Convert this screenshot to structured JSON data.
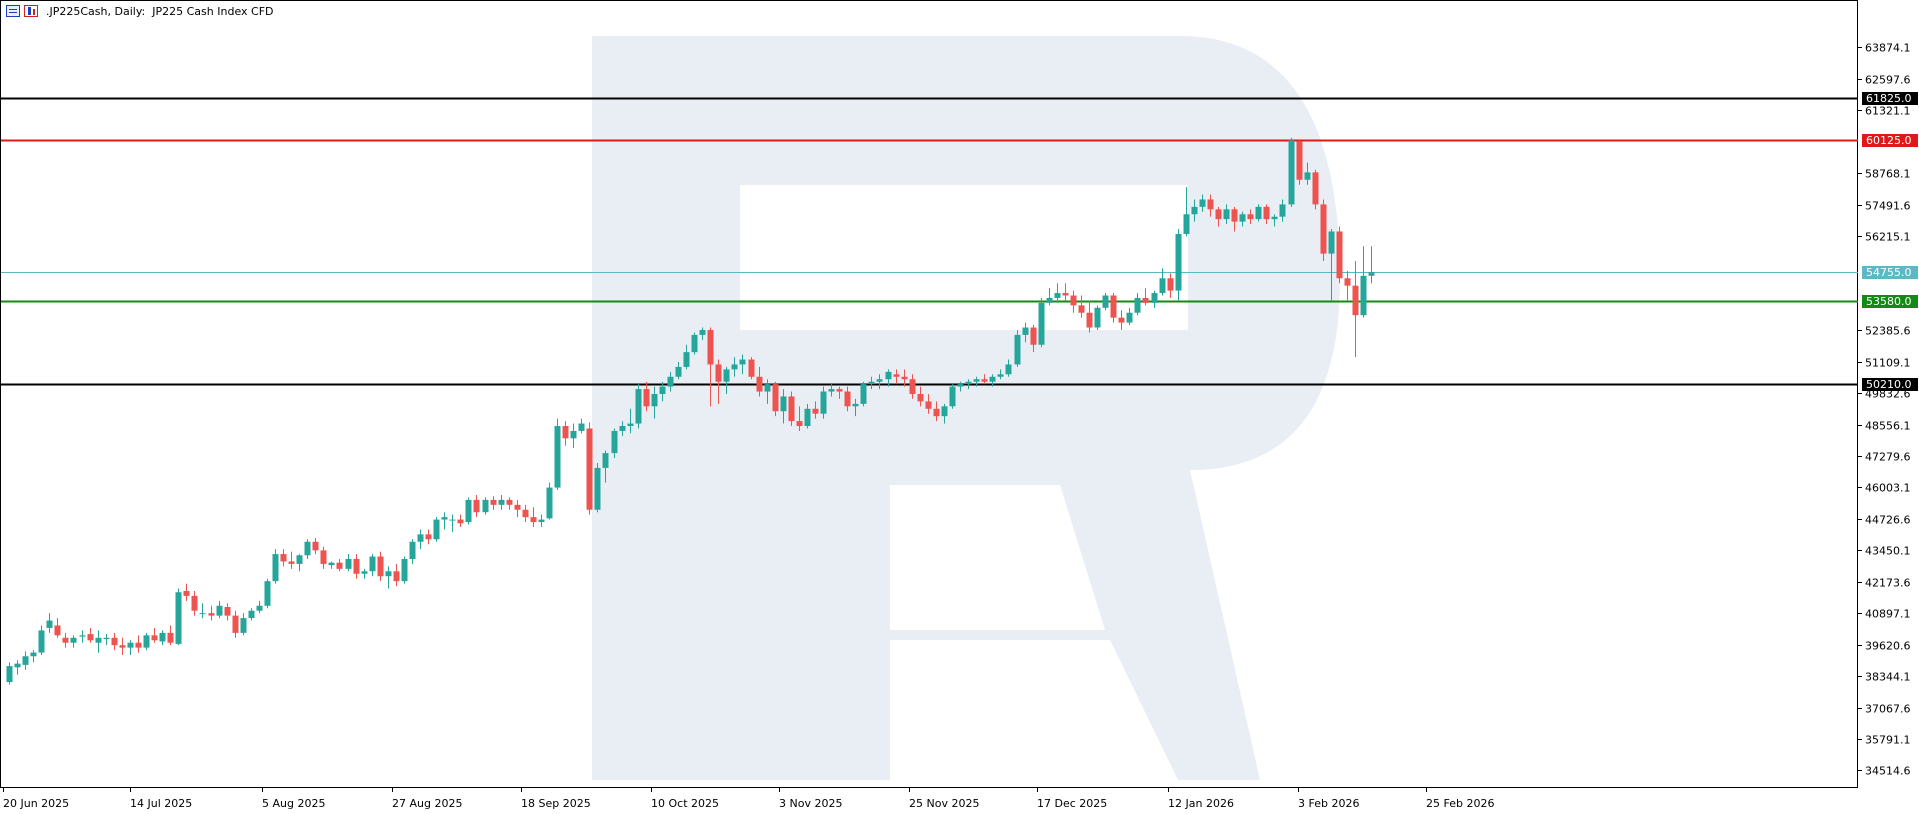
{
  "header": {
    "symbol": ".JP225Cash",
    "timeframe": "Daily",
    "description": "JP225 Cash Index CFD"
  },
  "colors": {
    "bull": "#26a69a",
    "bear": "#ef5350",
    "watermark": "#e9eef5",
    "axis": "#000000",
    "level_black": "#000000",
    "level_red": "#e01818",
    "level_green": "#138a13",
    "level_current": "#5bb8c4"
  },
  "chart_data": {
    "type": "candlestick",
    "title": ".JP225Cash, Daily:  JP225 Cash Index CFD",
    "x_start": "20 Jun 2025",
    "x_end": "2 Mar 2026",
    "ylim": [
      33800,
      65800
    ],
    "y_ticks": [
      "63874.1",
      "62597.6",
      "61321.1",
      "58768.1",
      "57491.6",
      "56215.1",
      "52385.6",
      "51109.1",
      "49832.6",
      "48556.1",
      "47279.6",
      "46003.1",
      "44726.6",
      "43450.1",
      "42173.6",
      "40897.1",
      "39620.6",
      "38344.1",
      "37067.6",
      "35791.1",
      "34514.6"
    ],
    "x_labels": [
      "20 Jun 2025",
      "14 Jul 2025",
      "5 Aug 2025",
      "27 Aug 2025",
      "18 Sep 2025",
      "10 Oct 2025",
      "3 Nov 2025",
      "25 Nov 2025",
      "17 Dec 2025",
      "12 Jan 2026",
      "3 Feb 2026",
      "25 Feb 2026"
    ],
    "levels": [
      {
        "value": 61825.0,
        "label": "61825.0",
        "color": "#000000"
      },
      {
        "value": 60125.0,
        "label": "60125.0",
        "color": "#e01818"
      },
      {
        "value": 54755.0,
        "label": "54755.0",
        "color": "#5bb8c4"
      },
      {
        "value": 53580.0,
        "label": "53580.0",
        "color": "#138a13"
      },
      {
        "value": 50210.0,
        "label": "50210.0",
        "color": "#000000"
      }
    ],
    "candles": [
      [
        38100,
        38900,
        38000,
        38750
      ],
      [
        38700,
        39000,
        38400,
        38850
      ],
      [
        38800,
        39350,
        38600,
        39150
      ],
      [
        39150,
        39400,
        38900,
        39300
      ],
      [
        39300,
        40400,
        39200,
        40200
      ],
      [
        40300,
        40900,
        40100,
        40600
      ],
      [
        40400,
        40700,
        39900,
        40000
      ],
      [
        39900,
        40100,
        39500,
        39700
      ],
      [
        39700,
        40000,
        39500,
        39900
      ],
      [
        39950,
        40200,
        39700,
        40000
      ],
      [
        40050,
        40300,
        39700,
        39800
      ],
      [
        39700,
        40200,
        39300,
        39900
      ],
      [
        39850,
        40050,
        39600,
        39900
      ],
      [
        39900,
        40100,
        39400,
        39600
      ],
      [
        39600,
        39900,
        39200,
        39500
      ],
      [
        39500,
        39800,
        39200,
        39700
      ],
      [
        39700,
        40000,
        39300,
        39500
      ],
      [
        39500,
        40100,
        39400,
        40000
      ],
      [
        40000,
        40300,
        39700,
        39800
      ],
      [
        39750,
        40200,
        39600,
        40100
      ],
      [
        40100,
        40400,
        39600,
        39700
      ],
      [
        39650,
        41900,
        39600,
        41750
      ],
      [
        41800,
        42100,
        41400,
        41600
      ],
      [
        41600,
        41800,
        40800,
        41000
      ],
      [
        40900,
        41300,
        40700,
        40900
      ],
      [
        40900,
        41200,
        40600,
        40800
      ],
      [
        40800,
        41400,
        40700,
        41200
      ],
      [
        41150,
        41300,
        40600,
        40800
      ],
      [
        40800,
        41000,
        39900,
        40100
      ],
      [
        40100,
        40900,
        40000,
        40700
      ],
      [
        40700,
        41100,
        40600,
        41000
      ],
      [
        41000,
        41400,
        40900,
        41200
      ],
      [
        41200,
        42300,
        41100,
        42200
      ],
      [
        42200,
        43500,
        42100,
        43300
      ],
      [
        43300,
        43500,
        42800,
        43000
      ],
      [
        43000,
        43400,
        42700,
        42900
      ],
      [
        42900,
        43300,
        42600,
        43250
      ],
      [
        43250,
        43900,
        43100,
        43800
      ],
      [
        43800,
        43950,
        43300,
        43450
      ],
      [
        43450,
        43600,
        42700,
        42900
      ],
      [
        42850,
        43000,
        42700,
        42950
      ],
      [
        42950,
        43100,
        42600,
        42700
      ],
      [
        42700,
        43300,
        42600,
        43100
      ],
      [
        43100,
        43300,
        42300,
        42500
      ],
      [
        42500,
        42700,
        42300,
        42600
      ],
      [
        42600,
        43300,
        42400,
        43200
      ],
      [
        43200,
        43400,
        42200,
        42400
      ],
      [
        42400,
        42800,
        41900,
        42600
      ],
      [
        42600,
        42900,
        42000,
        42200
      ],
      [
        42200,
        43200,
        42100,
        43100
      ],
      [
        43100,
        43900,
        42900,
        43800
      ],
      [
        43800,
        44300,
        43500,
        44100
      ],
      [
        44100,
        44300,
        43700,
        43900
      ],
      [
        43900,
        44800,
        43800,
        44700
      ],
      [
        44700,
        45000,
        44300,
        44800
      ],
      [
        44700,
        44900,
        44200,
        44700
      ],
      [
        44700,
        44900,
        44400,
        44550
      ],
      [
        44600,
        45600,
        44500,
        45500
      ],
      [
        45500,
        45700,
        44800,
        45000
      ],
      [
        45000,
        45600,
        44900,
        45500
      ],
      [
        45500,
        45650,
        45100,
        45300
      ],
      [
        45300,
        45700,
        45100,
        45500
      ],
      [
        45500,
        45600,
        45100,
        45300
      ],
      [
        45300,
        45500,
        44800,
        45100
      ],
      [
        45100,
        45300,
        44600,
        44800
      ],
      [
        44800,
        45200,
        44400,
        44600
      ],
      [
        44600,
        44900,
        44400,
        44700
      ],
      [
        44750,
        46200,
        44700,
        46000
      ],
      [
        46000,
        48800,
        45900,
        48500
      ],
      [
        48500,
        48700,
        47700,
        48000
      ],
      [
        48000,
        48600,
        47600,
        48300
      ],
      [
        48300,
        48800,
        48200,
        48600
      ],
      [
        48400,
        48650,
        44900,
        45100
      ],
      [
        45100,
        47000,
        45000,
        46800
      ],
      [
        46800,
        47500,
        46200,
        47400
      ],
      [
        47400,
        48400,
        47200,
        48300
      ],
      [
        48300,
        48700,
        48100,
        48500
      ],
      [
        48500,
        49200,
        48200,
        48600
      ],
      [
        48600,
        50200,
        48400,
        50000
      ],
      [
        50000,
        50300,
        49100,
        49300
      ],
      [
        49300,
        50100,
        48800,
        49800
      ],
      [
        49800,
        50300,
        49500,
        50100
      ],
      [
        50100,
        50700,
        49900,
        50500
      ],
      [
        50500,
        51100,
        50400,
        50900
      ],
      [
        50900,
        51800,
        50800,
        51500
      ],
      [
        51500,
        52300,
        51400,
        52200
      ],
      [
        52200,
        52500,
        52000,
        52400
      ],
      [
        52400,
        52500,
        49300,
        51000
      ],
      [
        51000,
        51200,
        49400,
        50300
      ],
      [
        50300,
        50900,
        49800,
        50800
      ],
      [
        50800,
        51300,
        50500,
        51000
      ],
      [
        51000,
        51400,
        50600,
        51200
      ],
      [
        51200,
        51300,
        50400,
        50500
      ],
      [
        50500,
        50900,
        49700,
        49900
      ],
      [
        49900,
        50400,
        49400,
        50200
      ],
      [
        50200,
        50300,
        48900,
        49100
      ],
      [
        49100,
        50000,
        48600,
        49700
      ],
      [
        49700,
        49900,
        48500,
        48700
      ],
      [
        48700,
        49300,
        48300,
        48500
      ],
      [
        48500,
        49400,
        48400,
        49200
      ],
      [
        49200,
        49500,
        48800,
        49000
      ],
      [
        49000,
        50100,
        48800,
        49900
      ],
      [
        49900,
        50200,
        49700,
        50000
      ],
      [
        50000,
        50100,
        49600,
        49900
      ],
      [
        49900,
        50100,
        49100,
        49300
      ],
      [
        49300,
        49600,
        48900,
        49400
      ],
      [
        49400,
        50300,
        49300,
        50200
      ],
      [
        50200,
        50500,
        50000,
        50300
      ],
      [
        50300,
        50600,
        50000,
        50400
      ],
      [
        50400,
        50800,
        50100,
        50700
      ],
      [
        50600,
        50800,
        50200,
        50500
      ],
      [
        50500,
        50800,
        50100,
        50400
      ],
      [
        50400,
        50600,
        49600,
        49800
      ],
      [
        49800,
        50100,
        49300,
        49500
      ],
      [
        49500,
        49800,
        49000,
        49200
      ],
      [
        49200,
        49500,
        48700,
        48900
      ],
      [
        48900,
        49400,
        48600,
        49300
      ],
      [
        49300,
        50200,
        49200,
        50100
      ],
      [
        50100,
        50300,
        49900,
        50200
      ],
      [
        50200,
        50400,
        50000,
        50300
      ],
      [
        50300,
        50500,
        50100,
        50400
      ],
      [
        50400,
        50600,
        50200,
        50300
      ],
      [
        50300,
        50600,
        50100,
        50500
      ],
      [
        50500,
        50800,
        50400,
        50600
      ],
      [
        50600,
        51200,
        50500,
        51000
      ],
      [
        51000,
        52400,
        50900,
        52200
      ],
      [
        52200,
        52700,
        51900,
        52500
      ],
      [
        52500,
        52600,
        51500,
        51800
      ],
      [
        51800,
        53700,
        51700,
        53500
      ],
      [
        53500,
        54100,
        53400,
        53700
      ],
      [
        53700,
        54300,
        53500,
        53900
      ],
      [
        53900,
        54300,
        53600,
        53800
      ],
      [
        53800,
        54000,
        53100,
        53400
      ],
      [
        53400,
        53800,
        52900,
        53100
      ],
      [
        53100,
        53600,
        52300,
        52500
      ],
      [
        52500,
        53400,
        52400,
        53300
      ],
      [
        53300,
        53900,
        53200,
        53800
      ],
      [
        53800,
        53900,
        52700,
        52900
      ],
      [
        52900,
        53200,
        52400,
        52700
      ],
      [
        52700,
        53300,
        52600,
        53100
      ],
      [
        53100,
        53900,
        53000,
        53700
      ],
      [
        53700,
        54100,
        53400,
        53500
      ],
      [
        53500,
        54000,
        53300,
        53900
      ],
      [
        53900,
        54900,
        53800,
        54500
      ],
      [
        54500,
        54700,
        53700,
        54000
      ],
      [
        54000,
        56500,
        53600,
        56300
      ],
      [
        56300,
        58200,
        56200,
        57100
      ],
      [
        57100,
        57700,
        56800,
        57400
      ],
      [
        57400,
        57900,
        57200,
        57700
      ],
      [
        57700,
        57900,
        57000,
        57300
      ],
      [
        57300,
        57400,
        56600,
        56900
      ],
      [
        56900,
        57500,
        56700,
        57300
      ],
      [
        57300,
        57400,
        56400,
        56800
      ],
      [
        56800,
        57200,
        56600,
        57100
      ],
      [
        57100,
        57300,
        56700,
        56900
      ],
      [
        56900,
        57500,
        56800,
        57400
      ],
      [
        57400,
        57500,
        56700,
        56900
      ],
      [
        56900,
        57100,
        56600,
        57000
      ],
      [
        57000,
        57700,
        56800,
        57500
      ],
      [
        57500,
        60200,
        57400,
        60100
      ],
      [
        60050,
        60100,
        58300,
        58500
      ],
      [
        58500,
        59200,
        58300,
        58800
      ],
      [
        58800,
        58900,
        57300,
        57500
      ],
      [
        57500,
        57700,
        55200,
        55500
      ],
      [
        55500,
        56500,
        53600,
        56400
      ],
      [
        56400,
        56600,
        54300,
        54500
      ],
      [
        54500,
        54800,
        53600,
        54200
      ],
      [
        54200,
        55200,
        51300,
        53000
      ],
      [
        53000,
        55800,
        52900,
        54600
      ],
      [
        54600,
        55800,
        54300,
        54750
      ]
    ]
  }
}
